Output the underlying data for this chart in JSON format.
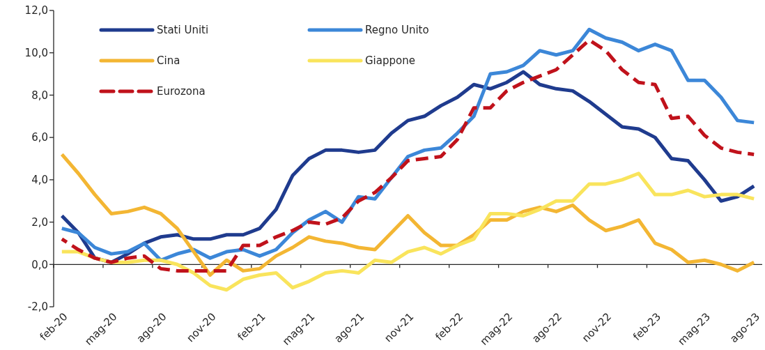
{
  "chart_data": {
    "type": "line",
    "categories": [
      "feb-20",
      null,
      null,
      "mag-20",
      null,
      null,
      "ago-20",
      null,
      null,
      "nov-20",
      null,
      null,
      "feb-21",
      null,
      null,
      "mag-21",
      null,
      null,
      "ago-21",
      null,
      null,
      "nov-21",
      null,
      null,
      "feb-22",
      null,
      null,
      "mag-22",
      null,
      null,
      "ago-22",
      null,
      null,
      "nov-22",
      null,
      null,
      "feb-23",
      null,
      null,
      "mag-23",
      null,
      null,
      "ago-23"
    ],
    "series": [
      {
        "name": "Stati Uniti",
        "color": "#1f3b8e",
        "values": [
          2.3,
          1.5,
          0.3,
          0.1,
          0.5,
          1.0,
          1.3,
          1.4,
          1.2,
          1.2,
          1.4,
          1.4,
          1.7,
          2.6,
          4.2,
          5.0,
          5.4,
          5.4,
          5.3,
          5.4,
          6.2,
          6.8,
          7.0,
          7.5,
          7.9,
          8.5,
          8.3,
          8.6,
          9.1,
          8.5,
          8.3,
          8.2,
          7.7,
          7.1,
          6.5,
          6.4,
          6.0,
          5.0,
          4.9,
          4.0,
          3.0,
          3.2,
          3.7
        ]
      },
      {
        "name": "Regno Unito",
        "color": "#3c87d8",
        "values": [
          1.7,
          1.5,
          0.8,
          0.5,
          0.6,
          1.0,
          0.2,
          0.5,
          0.7,
          0.3,
          0.6,
          0.7,
          0.4,
          0.7,
          1.5,
          2.1,
          2.5,
          2.0,
          3.2,
          3.1,
          4.1,
          5.1,
          5.4,
          5.5,
          6.2,
          7.0,
          9.0,
          9.1,
          9.4,
          10.1,
          9.9,
          10.1,
          11.1,
          10.7,
          10.5,
          10.1,
          10.4,
          10.1,
          8.7,
          8.7,
          7.9,
          6.8,
          6.7
        ]
      },
      {
        "name": "Cina",
        "color": "#f3b633",
        "values": [
          5.2,
          4.3,
          3.3,
          2.4,
          2.5,
          2.7,
          2.4,
          1.7,
          0.6,
          -0.5,
          0.2,
          -0.3,
          -0.2,
          0.4,
          0.8,
          1.3,
          1.1,
          1.0,
          0.8,
          0.7,
          1.5,
          2.3,
          1.5,
          0.9,
          0.9,
          1.4,
          2.1,
          2.1,
          2.5,
          2.7,
          2.5,
          2.8,
          2.1,
          1.6,
          1.8,
          2.1,
          1.0,
          0.7,
          0.1,
          0.2,
          0.0,
          -0.3,
          0.1
        ]
      },
      {
        "name": "Giappone",
        "color": "#f9e45c",
        "values": [
          0.6,
          0.6,
          0.3,
          0.1,
          0.1,
          0.2,
          0.2,
          0.0,
          -0.4,
          -1.0,
          -1.2,
          -0.7,
          -0.5,
          -0.4,
          -1.1,
          -0.8,
          -0.4,
          -0.3,
          -0.4,
          0.2,
          0.1,
          0.6,
          0.8,
          0.5,
          0.9,
          1.2,
          2.4,
          2.4,
          2.3,
          2.6,
          3.0,
          3.0,
          3.8,
          3.8,
          4.0,
          4.3,
          3.3,
          3.3,
          3.5,
          3.2,
          3.3,
          3.3,
          3.1
        ]
      },
      {
        "name": "Eurozona",
        "color": "#c0121b",
        "line_style": "dashed",
        "values": [
          1.2,
          0.7,
          0.3,
          0.1,
          0.3,
          0.4,
          -0.2,
          -0.3,
          -0.3,
          -0.3,
          -0.3,
          0.9,
          0.9,
          1.3,
          1.6,
          2.0,
          1.9,
          2.2,
          3.0,
          3.4,
          4.1,
          4.9,
          5.0,
          5.1,
          5.9,
          7.4,
          7.4,
          8.2,
          8.6,
          8.9,
          9.2,
          9.9,
          10.6,
          10.1,
          9.2,
          8.6,
          8.5,
          6.9,
          7.0,
          6.1,
          5.5,
          5.3,
          5.2
        ]
      }
    ],
    "ylim": [
      -2,
      12
    ],
    "yticks": [
      {
        "value": -2,
        "label": "-2,0"
      },
      {
        "value": 0,
        "label": "0,0"
      },
      {
        "value": 2,
        "label": "2,0"
      },
      {
        "value": 4,
        "label": "4,0"
      },
      {
        "value": 6,
        "label": "6,0"
      },
      {
        "value": 8,
        "label": "8,0"
      },
      {
        "value": 10,
        "label": "10,0"
      },
      {
        "value": 12,
        "label": "12,0"
      }
    ],
    "legend": "top left",
    "marker": "none",
    "line_style": "solid"
  }
}
